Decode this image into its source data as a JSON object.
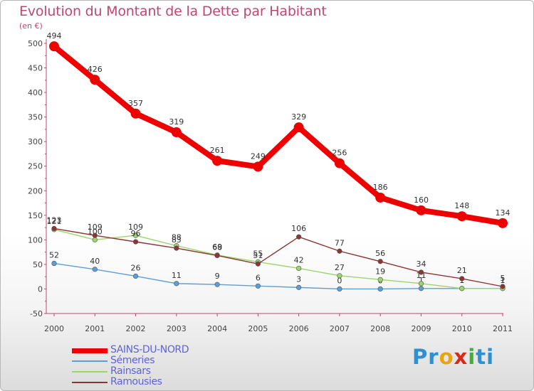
{
  "header": {
    "title": "Evolution du Montant de la Dette par Habitant",
    "unit": "(en €)"
  },
  "logo": {
    "text": "Proxiti",
    "letter_colors": [
      "#2f8fd0",
      "#2f8fd0",
      "#e8a317",
      "#d9291c",
      "#4aa844",
      "#2f8fd0",
      "#2f8fd0"
    ]
  },
  "chart_data": {
    "type": "line",
    "x": [
      "2000",
      "2001",
      "2002",
      "2003",
      "2004",
      "2005",
      "2006",
      "2007",
      "2008",
      "2009",
      "2010",
      "2011"
    ],
    "ylim": [
      -50,
      500
    ],
    "yticks": [
      "-50",
      "0",
      "50",
      "100",
      "150",
      "200",
      "250",
      "300",
      "350",
      "400",
      "450",
      "500"
    ],
    "grid": false,
    "legend_position": "bottom-left",
    "series": [
      {
        "name": "SAINS-DU-NORD",
        "color": "#ee0000",
        "values": [
          494,
          426,
          357,
          319,
          261,
          249,
          329,
          256,
          186,
          160,
          148,
          134
        ],
        "labels": [
          "494",
          "426",
          "357",
          "319",
          "261",
          "249",
          "329",
          "256",
          "186",
          "160",
          "148",
          "134"
        ]
      },
      {
        "name": "Sémeries",
        "color": "#5b9fd8",
        "values": [
          52,
          40,
          26,
          11,
          9,
          6,
          3,
          0,
          0,
          1,
          1,
          1
        ],
        "labels": [
          "52",
          "40",
          "26",
          "11",
          "9",
          "6",
          "3",
          "0",
          "0",
          "1",
          "1",
          "1"
        ]
      },
      {
        "name": "Rainsars",
        "color": "#9bd66a",
        "values": [
          121,
          100,
          109,
          88,
          69,
          55,
          42,
          27,
          19,
          11,
          1,
          1
        ],
        "labels": [
          "121",
          "100",
          "109",
          "88",
          "69",
          "55",
          "42",
          "27",
          "19",
          "11",
          "1",
          "1"
        ]
      },
      {
        "name": "Ramousies",
        "color": "#8c3535",
        "values": [
          123,
          109,
          96,
          83,
          68,
          51,
          106,
          77,
          56,
          34,
          21,
          5
        ],
        "labels": [
          "123",
          "109",
          "96",
          "83",
          "68",
          "51",
          "106",
          "77",
          "56",
          "34",
          "21",
          "5"
        ]
      }
    ]
  }
}
